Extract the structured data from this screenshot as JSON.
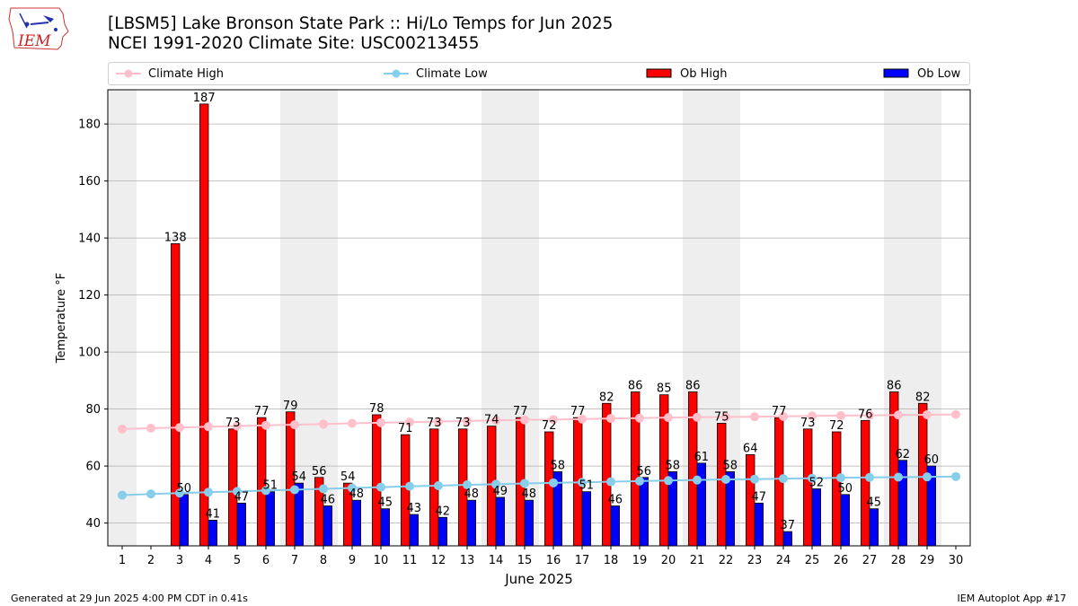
{
  "header": {
    "title_line1": "[LBSM5] Lake Bronson State Park :: Hi/Lo Temps for Jun 2025",
    "title_line2": "NCEI 1991-2020 Climate Site: USC00213455"
  },
  "logo": {
    "text": "IEM"
  },
  "legend": {
    "climate_high": "Climate High",
    "climate_low": "Climate Low",
    "ob_high": "Ob High",
    "ob_low": "Ob Low"
  },
  "footer": {
    "left": "Generated at 29 Jun 2025 4:00 PM CDT in 0.41s",
    "right": "IEM Autoplot App #17"
  },
  "colors": {
    "climate_high": "#ffc0cb",
    "climate_low": "#87ceeb",
    "ob_high": "#ff0000",
    "ob_low": "#0000ff",
    "weekend_band": "#eeeeee"
  },
  "chart_data": {
    "type": "bar",
    "xlabel": "June 2025",
    "ylabel": "Temperature °F",
    "ylim": [
      32,
      192
    ],
    "yticks": [
      40,
      60,
      80,
      100,
      120,
      140,
      160,
      180
    ],
    "grid": true,
    "legend_position": "top",
    "categories": [
      "1",
      "2",
      "3",
      "4",
      "5",
      "6",
      "7",
      "8",
      "9",
      "10",
      "11",
      "12",
      "13",
      "14",
      "15",
      "16",
      "17",
      "18",
      "19",
      "20",
      "21",
      "22",
      "23",
      "24",
      "25",
      "26",
      "27",
      "28",
      "29",
      "30"
    ],
    "shaded_days": [
      1,
      7,
      8,
      14,
      15,
      21,
      22,
      28,
      29
    ],
    "series": [
      {
        "name": "Ob High",
        "kind": "bar",
        "values": [
          null,
          null,
          138,
          187,
          73,
          77,
          79,
          56,
          54,
          78,
          71,
          73,
          73,
          74,
          77,
          72,
          77,
          82,
          86,
          85,
          86,
          75,
          64,
          77,
          73,
          72,
          76,
          86,
          82,
          null
        ]
      },
      {
        "name": "Ob Low",
        "kind": "bar",
        "values": [
          null,
          null,
          50,
          41,
          47,
          51,
          54,
          46,
          48,
          45,
          43,
          42,
          48,
          49,
          48,
          58,
          51,
          46,
          56,
          58,
          61,
          58,
          47,
          37,
          52,
          50,
          45,
          62,
          60,
          null
        ]
      },
      {
        "name": "Climate High",
        "kind": "line",
        "values": [
          73.0,
          73.3,
          73.5,
          73.8,
          74.0,
          74.3,
          74.5,
          74.7,
          75.0,
          75.2,
          75.4,
          75.6,
          75.8,
          76.0,
          76.2,
          76.3,
          76.5,
          76.7,
          76.8,
          77.0,
          77.1,
          77.2,
          77.3,
          77.4,
          77.6,
          77.7,
          77.8,
          77.9,
          78.0,
          78.1
        ]
      },
      {
        "name": "Climate Low",
        "kind": "line",
        "values": [
          49.8,
          50.2,
          50.5,
          50.8,
          51.1,
          51.4,
          51.7,
          52.0,
          52.3,
          52.6,
          52.9,
          53.1,
          53.4,
          53.6,
          53.9,
          54.1,
          54.3,
          54.5,
          54.7,
          54.9,
          55.1,
          55.3,
          55.4,
          55.6,
          55.7,
          55.9,
          56.0,
          56.1,
          56.2,
          56.3
        ]
      }
    ]
  }
}
